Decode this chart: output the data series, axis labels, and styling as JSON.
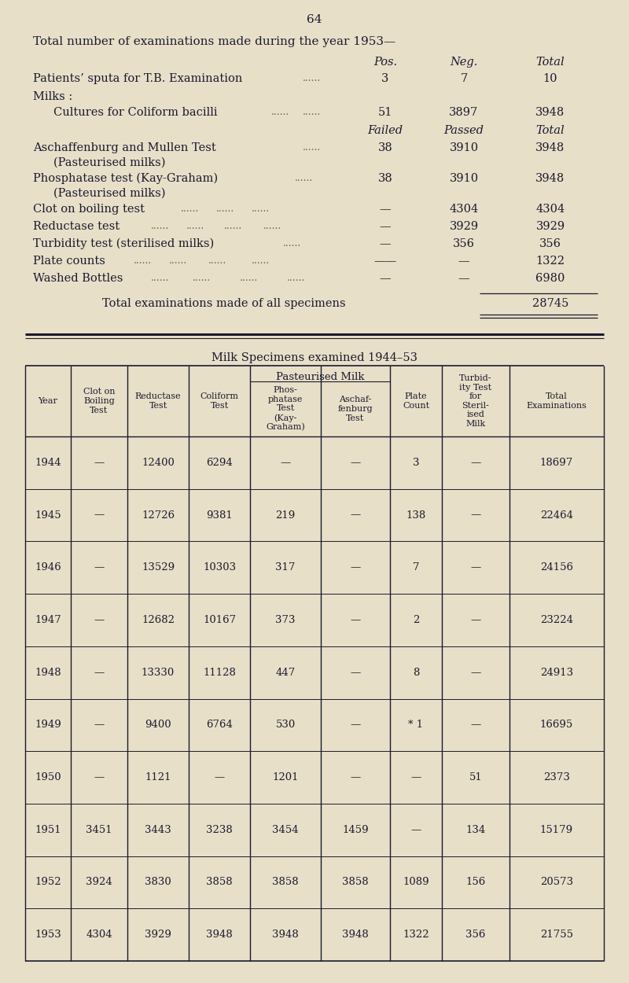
{
  "page_number": "64",
  "bg_color": "#e8dfc8",
  "text_color": "#1a1a2e",
  "title1": "Total number of examinations made during the year 1953—",
  "table2_title": "Milk Specimens examined 1944–53",
  "table2_rows": [
    [
      "1944",
      "—",
      "12400",
      "6294",
      "—",
      "—",
      "3",
      "—",
      "18697"
    ],
    [
      "1945",
      "—",
      "12726",
      "9381",
      "219",
      "—",
      "138",
      "—",
      "22464"
    ],
    [
      "1946",
      "—",
      "13529",
      "10303",
      "317",
      "—",
      "7",
      "—",
      "24156"
    ],
    [
      "1947",
      "—",
      "12682",
      "10167",
      "373",
      "—",
      "2",
      "—",
      "23224"
    ],
    [
      "1948",
      "—",
      "13330",
      "11128",
      "447",
      "—",
      "8",
      "—",
      "24913"
    ],
    [
      "1949",
      "—",
      "9400",
      "6764",
      "530",
      "—",
      "* 1",
      "—",
      "16695"
    ],
    [
      "1950",
      "—",
      "1121",
      "—",
      "1201",
      "—",
      "—",
      "51",
      "2373"
    ],
    [
      "1951",
      "3451",
      "3443",
      "3238",
      "3454",
      "1459",
      "—",
      "134",
      "15179"
    ],
    [
      "1952",
      "3924",
      "3830",
      "3858",
      "3858",
      "3858",
      "1089",
      "156",
      "20573"
    ],
    [
      "1953",
      "4304",
      "3929",
      "3948",
      "3948",
      "3948",
      "1322",
      "356",
      "21755"
    ]
  ]
}
